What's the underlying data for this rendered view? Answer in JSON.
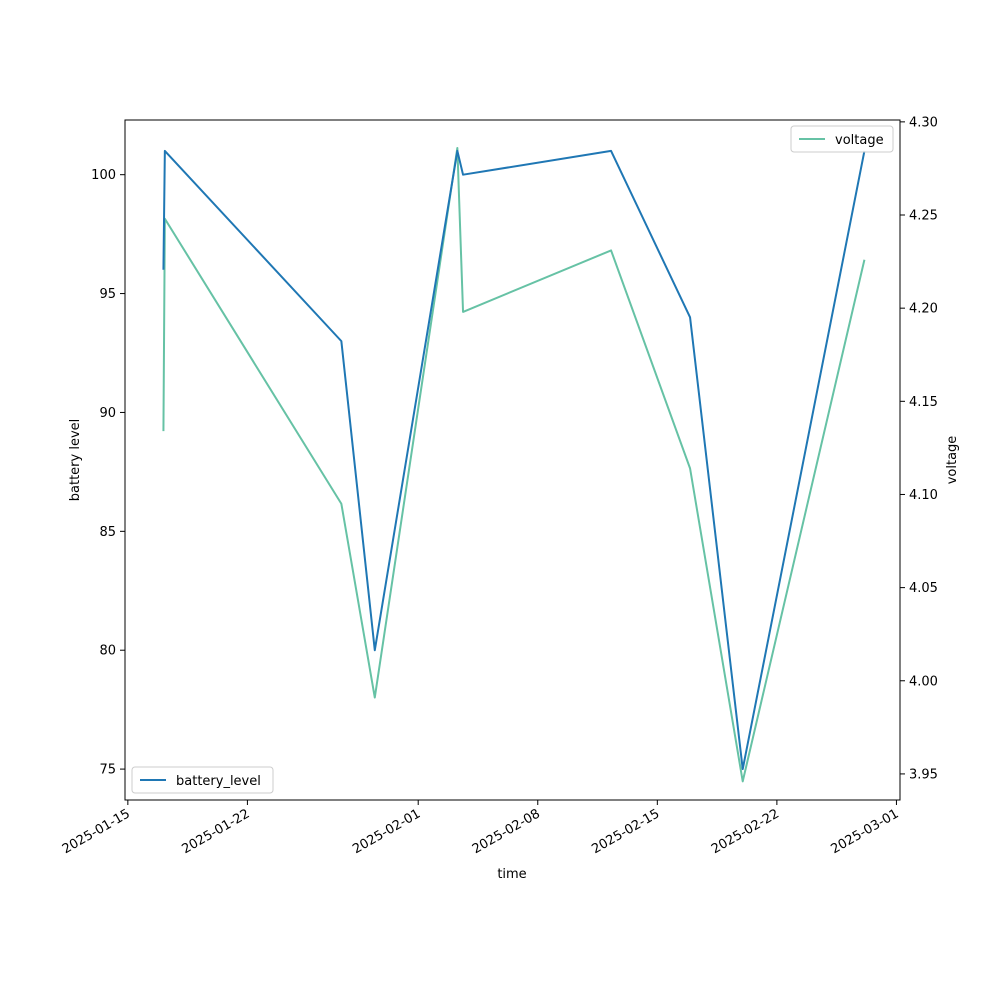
{
  "chart_data": {
    "type": "line",
    "xlabel": "time",
    "ylabel_left": "battery level",
    "ylabel_right": "voltage",
    "x_ticks": [
      "2025-01-15",
      "2025-01-22",
      "2025-02-01",
      "2025-02-08",
      "2025-02-15",
      "2025-02-22",
      "2025-03-01"
    ],
    "y_left_ticks": [
      "75",
      "80",
      "85",
      "90",
      "95",
      "100"
    ],
    "y_right_ticks": [
      "3.95",
      "4.00",
      "4.05",
      "4.10",
      "4.15",
      "4.20",
      "4.25",
      "4.30"
    ],
    "y_left_range": [
      73.7,
      102.3
    ],
    "y_right_range": [
      3.936,
      4.301
    ],
    "x_range": [
      "2025-01-14T20:00",
      "2025-03-01T05:00"
    ],
    "grid": false,
    "series": [
      {
        "name": "battery_level",
        "axis": "left",
        "color": "#1f77b4",
        "legend_position": "lower-left",
        "points": [
          [
            "2025-01-17T02:00",
            96
          ],
          [
            "2025-01-17T04:00",
            101
          ],
          [
            "2025-01-27T12:00",
            93
          ],
          [
            "2025-01-29T11:00",
            80
          ],
          [
            "2025-02-03T07:00",
            101
          ],
          [
            "2025-02-03T15:00",
            100
          ],
          [
            "2025-02-12T07:00",
            101
          ],
          [
            "2025-02-16T22:00",
            94
          ],
          [
            "2025-02-20T00:00",
            75
          ],
          [
            "2025-02-27T03:00",
            101
          ]
        ]
      },
      {
        "name": "voltage",
        "axis": "right",
        "color": "#66c2a5",
        "legend_position": "upper-right",
        "points": [
          [
            "2025-01-17T02:00",
            4.134
          ],
          [
            "2025-01-17T04:00",
            4.248
          ],
          [
            "2025-01-27T12:00",
            4.095
          ],
          [
            "2025-01-29T11:00",
            3.991
          ],
          [
            "2025-02-03T07:00",
            4.286
          ],
          [
            "2025-02-03T15:00",
            4.198
          ],
          [
            "2025-02-12T07:00",
            4.231
          ],
          [
            "2025-02-16T22:00",
            4.114
          ],
          [
            "2025-02-20T00:00",
            3.946
          ],
          [
            "2025-02-27T03:00",
            4.226
          ]
        ]
      }
    ]
  }
}
